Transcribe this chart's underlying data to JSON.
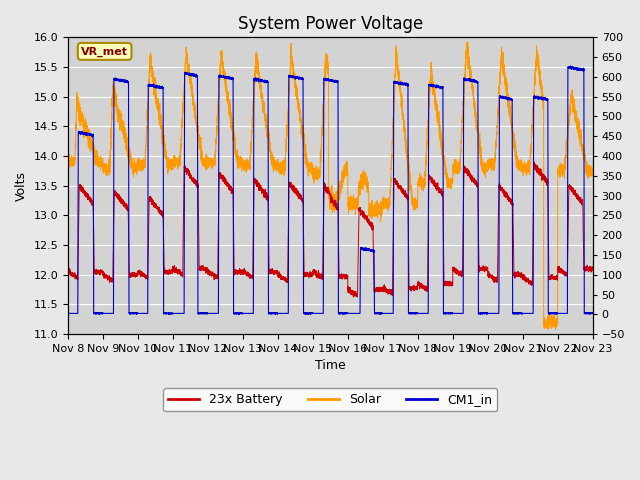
{
  "title": "System Power Voltage",
  "xlabel": "Time",
  "ylabel": "Volts",
  "ylim": [
    11.0,
    16.0
  ],
  "ylim2": [
    -50,
    700
  ],
  "yticks": [
    11.0,
    11.5,
    12.0,
    12.5,
    13.0,
    13.5,
    14.0,
    14.5,
    15.0,
    15.5,
    16.0
  ],
  "xtick_labels": [
    "Nov 8",
    "Nov 9",
    "Nov 10",
    "Nov 11",
    "Nov 12",
    "Nov 13",
    "Nov 14",
    "Nov 15",
    "Nov 16",
    "Nov 17",
    "Nov 18",
    "Nov 19",
    "Nov 20",
    "Nov 21",
    "Nov 22",
    "Nov 23"
  ],
  "legend_labels": [
    "23x Battery",
    "Solar",
    "CM1_in"
  ],
  "legend_colors": [
    "#cc0000",
    "#ff9900",
    "#0000cc"
  ],
  "annotation_text": "VR_met",
  "bg_color": "#e8e8e8",
  "plot_bg_color": "#d3d3d3",
  "title_fontsize": 12,
  "label_fontsize": 9,
  "tick_fontsize": 8,
  "battery_color": "#cc0000",
  "solar_color": "#ff9900",
  "cm1_color": "#0000cc"
}
